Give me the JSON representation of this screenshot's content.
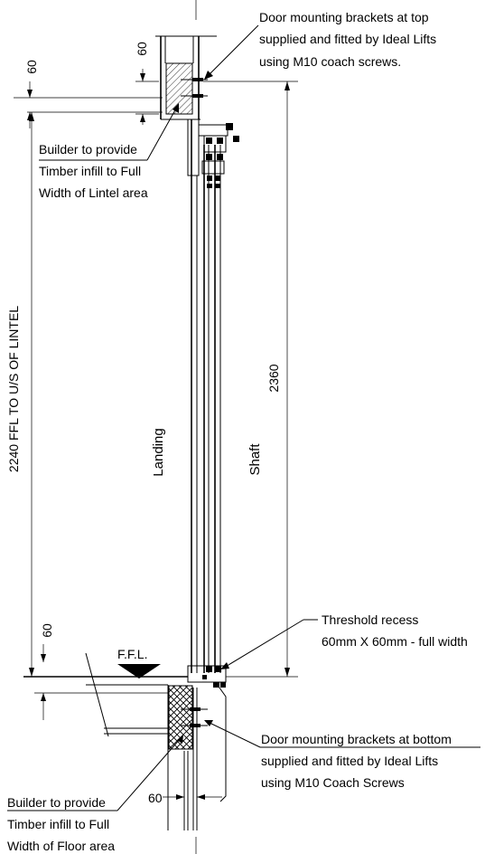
{
  "annotations": {
    "top_brackets": [
      "Door mounting brackets at top",
      "supplied and fitted by Ideal Lifts",
      "using M10 coach screws."
    ],
    "lintel_infill": [
      "Builder to provide",
      "Timber infill to Full",
      "Width of Lintel area"
    ],
    "threshold_recess": [
      "Threshold recess",
      "60mm  X 60mm - full width"
    ],
    "bottom_brackets": [
      "Door mounting brackets at bottom",
      "supplied and fitted by Ideal Lifts",
      "using M10 Coach Screws"
    ],
    "floor_infill": [
      "Builder to provide",
      "Timber infill to Full",
      "Width of Floor area"
    ]
  },
  "dimensions": {
    "lintel_height": "2240 FFL TO U/S OF LINTEL",
    "shaft_height": "2360",
    "top_left_60": "60",
    "top_lintel_60": "60",
    "bottom_left_60": "60",
    "bottom_floor_60": "60"
  },
  "labels": {
    "landing": "Landing",
    "shaft": "Shaft",
    "ffl": "F.F.L."
  }
}
